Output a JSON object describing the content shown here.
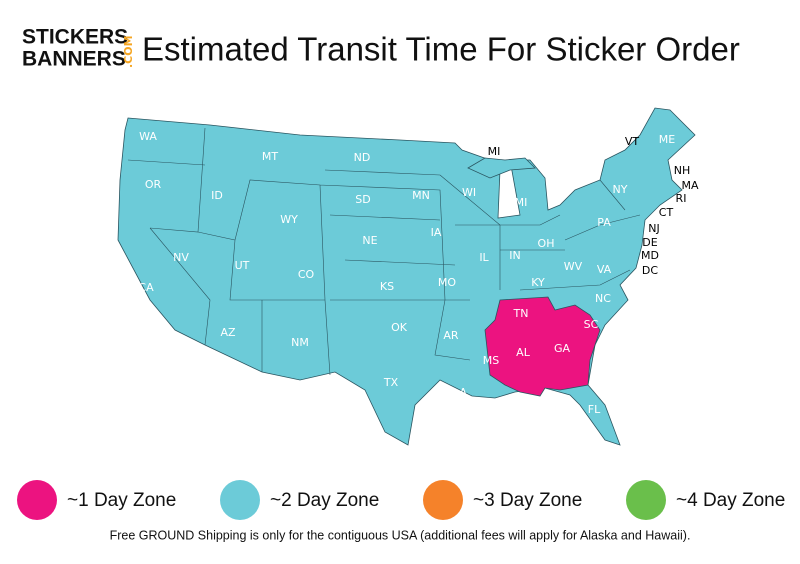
{
  "logo": {
    "line1": "STICKERS",
    "line2": "BANNERS",
    "suffix": ".COM"
  },
  "title": "Estimated Transit Time For Sticker Order",
  "map_labels": [
    "WA",
    "OR",
    "CA",
    "NV",
    "ID",
    "MT",
    "WY",
    "UT",
    "AZ",
    "CO",
    "NM",
    "ND",
    "SD",
    "NE",
    "KS",
    "OK",
    "TX",
    "MN",
    "IA",
    "MO",
    "AR",
    "LA",
    "WI",
    "IL",
    "MI",
    "IN",
    "OH",
    "KY",
    "TN",
    "MS",
    "AL",
    "GA",
    "FL",
    "SC",
    "NC",
    "VA",
    "WV",
    "PA",
    "NY",
    "ME"
  ],
  "callout_labels": [
    "MI",
    "VT",
    "NH",
    "MA",
    "RI",
    "CT",
    "NJ",
    "DE",
    "MD",
    "DC"
  ],
  "legend": [
    {
      "label": "~1 Day Zone",
      "color": "#ec1380"
    },
    {
      "label": "~2 Day Zone",
      "color": "#6ccbd8"
    },
    {
      "label": "~3 Day Zone",
      "color": "#f5822a"
    },
    {
      "label": "~4 Day Zone",
      "color": "#6abf4b"
    }
  ],
  "footer": "Free GROUND Shipping is only for the contiguous USA (additional fees will apply for Alaska and Hawaii)."
}
